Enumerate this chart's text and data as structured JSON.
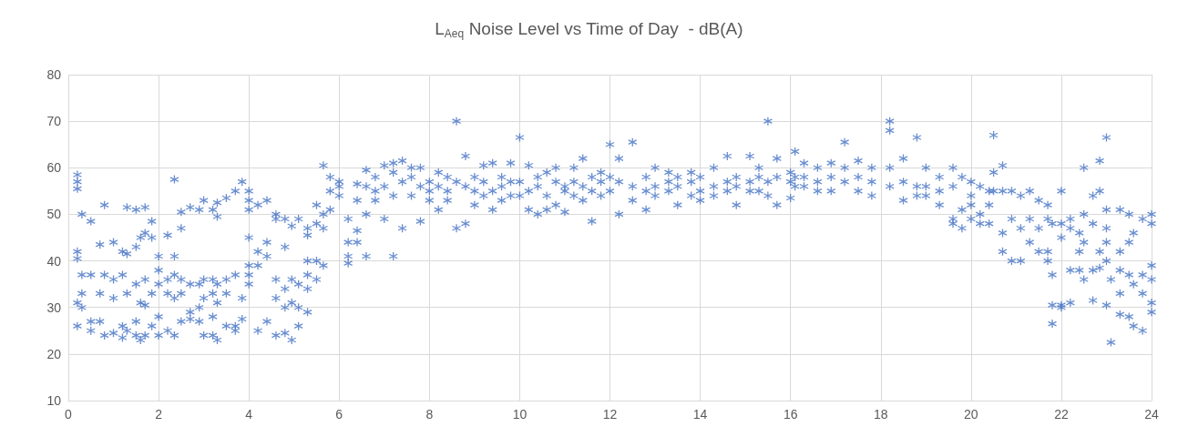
{
  "chart_data": {
    "type": "scatter",
    "title": "L$_{Aeq}$ Noise Level vs Time of Day  - dB(A)",
    "xlim": [
      0,
      24
    ],
    "xticks": [
      0,
      2,
      4,
      6,
      8,
      10,
      12,
      14,
      16,
      18,
      20,
      22,
      24
    ],
    "ylim": [
      10,
      80
    ],
    "yticks": [
      10,
      20,
      30,
      40,
      50,
      60,
      70,
      80
    ],
    "grid": true,
    "marker": "cross",
    "series": [
      {
        "color": "#4472c4",
        "x": [
          0.2,
          0.2,
          0.2,
          0.2,
          0.2,
          0.2,
          0.2,
          0.3,
          0.3,
          0.3,
          0.3,
          0.5,
          0.5,
          0.5,
          0.5,
          0.7,
          0.7,
          0.7,
          0.8,
          0.8,
          0.8,
          1.0,
          1.0,
          1.0,
          1.0,
          1.2,
          1.2,
          1.2,
          1.2,
          1.3,
          1.3,
          1.3,
          1.3,
          1.5,
          1.5,
          1.5,
          1.5,
          1.5,
          1.6,
          1.6,
          1.6,
          1.7,
          1.7,
          1.7,
          1.7,
          1.7,
          1.85,
          1.85,
          1.85,
          1.85,
          2.0,
          2.0,
          2.0,
          2.0,
          2.0,
          2.2,
          2.2,
          2.2,
          2.2,
          2.35,
          2.35,
          2.35,
          2.35,
          2.35,
          2.5,
          2.5,
          2.5,
          2.5,
          2.5,
          2.7,
          2.7,
          2.7,
          2.7,
          2.9,
          2.9,
          2.9,
          2.9,
          3.0,
          3.0,
          3.0,
          3.0,
          3.2,
          3.2,
          3.2,
          3.2,
          3.2,
          3.3,
          3.3,
          3.3,
          3.3,
          3.3,
          3.5,
          3.5,
          3.5,
          3.5,
          3.7,
          3.7,
          3.7,
          3.7,
          3.85,
          3.85,
          3.85,
          4.0,
          4.0,
          4.0,
          4.0,
          4.0,
          4.0,
          4.0,
          4.2,
          4.2,
          4.2,
          4.2,
          4.4,
          4.4,
          4.4,
          4.4,
          4.6,
          4.6,
          4.6,
          4.6,
          4.6,
          4.8,
          4.8,
          4.8,
          4.8,
          4.8,
          4.95,
          4.95,
          4.95,
          4.95,
          5.1,
          5.1,
          5.1,
          5.1,
          5.3,
          5.3,
          5.3,
          5.3,
          5.3,
          5.3,
          5.5,
          5.5,
          5.5,
          5.5,
          5.65,
          5.65,
          5.65,
          5.65,
          5.8,
          5.8,
          5.8,
          6.0,
          6.0,
          6.0,
          6.2,
          6.2,
          6.2,
          6.2,
          6.4,
          6.4,
          6.4,
          6.4,
          6.6,
          6.6,
          6.6,
          6.6,
          6.8,
          6.8,
          6.8,
          7.0,
          7.0,
          7.0,
          7.2,
          7.2,
          7.2,
          7.2,
          7.4,
          7.4,
          7.4,
          7.6,
          7.6,
          7.6,
          7.8,
          7.8,
          7.8,
          8.0,
          8.0,
          8.0,
          8.2,
          8.2,
          8.2,
          8.4,
          8.4,
          8.4,
          8.6,
          8.6,
          8.6,
          8.8,
          8.8,
          8.8,
          9.0,
          9.0,
          9.0,
          9.2,
          9.2,
          9.2,
          9.4,
          9.4,
          9.4,
          9.6,
          9.6,
          9.6,
          9.8,
          9.8,
          9.8,
          10.0,
          10.0,
          10.0,
          10.2,
          10.2,
          10.2,
          10.4,
          10.4,
          10.4,
          10.6,
          10.6,
          10.6,
          10.8,
          10.8,
          10.8,
          11.0,
          11.0,
          11.0,
          11.2,
          11.2,
          11.2,
          11.4,
          11.4,
          11.4,
          11.6,
          11.6,
          11.6,
          11.8,
          11.8,
          11.8,
          12.0,
          12.0,
          12.0,
          12.2,
          12.2,
          12.2,
          12.5,
          12.5,
          12.5,
          12.8,
          12.8,
          12.8,
          13.0,
          13.0,
          13.0,
          13.3,
          13.3,
          13.3,
          13.5,
          13.5,
          13.5,
          13.8,
          13.8,
          13.8,
          14.0,
          14.0,
          14.0,
          14.3,
          14.3,
          14.3,
          14.6,
          14.6,
          14.6,
          14.8,
          14.8,
          14.8,
          15.1,
          15.1,
          15.1,
          15.3,
          15.3,
          15.3,
          15.5,
          15.5,
          15.5,
          15.7,
          15.7,
          15.7,
          16.0,
          16.0,
          16.0,
          16.1,
          16.1,
          16.1,
          16.3,
          16.3,
          16.3,
          16.6,
          16.6,
          16.6,
          16.9,
          16.9,
          16.9,
          17.2,
          17.2,
          17.2,
          17.5,
          17.5,
          17.5,
          17.8,
          17.8,
          17.8,
          18.2,
          18.2,
          18.2,
          18.2,
          18.5,
          18.5,
          18.5,
          18.8,
          18.8,
          18.8,
          19.0,
          19.0,
          19.0,
          19.3,
          19.3,
          19.3,
          19.6,
          19.6,
          19.6,
          19.6,
          19.8,
          19.8,
          19.8,
          20.0,
          20.0,
          20.0,
          20.0,
          20.2,
          20.2,
          20.2,
          20.4,
          20.4,
          20.4,
          20.5,
          20.5,
          20.5,
          20.7,
          20.7,
          20.7,
          20.7,
          20.9,
          20.9,
          20.9,
          21.1,
          21.1,
          21.1,
          21.3,
          21.3,
          21.3,
          21.5,
          21.5,
          21.5,
          21.7,
          21.7,
          21.7,
          21.7,
          21.8,
          21.8,
          21.8,
          21.8,
          22.0,
          22.0,
          22.0,
          22.0,
          22.0,
          22.2,
          22.2,
          22.2,
          22.2,
          22.4,
          22.4,
          22.4,
          22.5,
          22.5,
          22.5,
          22.5,
          22.7,
          22.7,
          22.7,
          22.7,
          22.85,
          22.85,
          22.85,
          22.85,
          23.0,
          23.0,
          23.0,
          23.0,
          23.0,
          23.0,
          23.1,
          23.1,
          23.3,
          23.3,
          23.3,
          23.3,
          23.3,
          23.5,
          23.5,
          23.5,
          23.5,
          23.6,
          23.6,
          23.6,
          23.8,
          23.8,
          23.8,
          23.8,
          24.0,
          24.0,
          24.0,
          24.0,
          24.0,
          24.0
        ],
        "values": [
          58.5,
          57,
          55.5,
          42,
          40.5,
          31,
          26,
          50,
          37,
          33,
          30,
          48.5,
          37,
          27,
          25,
          43.5,
          33,
          27,
          52,
          37,
          24,
          44,
          36,
          32,
          24.5,
          42,
          37,
          26,
          23.5,
          51.5,
          41.5,
          33,
          25,
          51,
          43,
          35,
          27,
          24,
          45,
          31,
          23,
          51.5,
          46,
          36,
          30.5,
          24,
          48.5,
          45,
          33,
          26,
          41,
          38,
          35,
          28,
          24,
          45.5,
          36,
          33,
          25,
          57.5,
          41,
          37,
          32,
          24,
          50.5,
          47,
          36,
          33,
          27,
          51.5,
          35,
          29,
          27.5,
          51,
          35,
          30,
          27,
          53,
          36,
          32,
          24,
          51,
          36,
          33,
          28,
          24,
          52.5,
          49.5,
          35,
          31,
          23,
          53.5,
          36,
          33,
          26,
          55,
          37,
          26,
          25,
          57,
          32,
          27.5,
          55,
          53,
          51,
          45,
          39,
          37,
          35,
          52,
          42,
          39,
          25,
          53,
          44,
          41,
          27,
          50,
          49,
          36,
          32,
          24,
          49,
          43,
          34,
          30,
          24.5,
          47.5,
          36,
          31,
          23,
          49,
          35,
          30,
          26,
          47,
          45.5,
          40,
          37,
          34,
          29,
          52,
          48,
          40,
          36,
          60.5,
          50,
          47,
          39,
          58,
          55,
          51,
          57,
          56,
          54,
          49,
          44,
          41,
          39.5,
          56.5,
          53,
          46.5,
          44,
          59.5,
          56,
          50,
          41,
          58,
          55,
          53,
          60.5,
          56,
          49,
          61,
          59,
          54,
          41,
          61.5,
          57,
          47,
          60,
          58,
          54,
          60,
          56,
          48.5,
          57,
          55,
          53,
          59,
          56,
          51,
          58,
          55,
          53,
          70,
          57,
          47,
          62.5,
          56,
          48,
          58,
          55,
          52,
          60.5,
          57,
          54,
          61,
          55,
          51,
          58,
          56,
          53,
          61,
          57,
          54,
          66.5,
          57,
          54,
          60.5,
          55,
          51,
          58,
          56,
          50,
          59,
          54,
          51,
          60,
          57,
          52,
          56,
          55,
          50.5,
          60,
          57,
          54,
          62,
          56,
          53,
          58,
          55,
          48.5,
          59,
          57,
          54,
          65,
          58,
          55,
          62,
          57,
          50,
          65.5,
          56,
          53,
          58,
          55,
          51,
          60,
          56,
          54,
          59,
          57,
          55,
          58,
          56,
          52,
          59,
          57,
          54,
          58,
          55,
          53,
          60,
          56,
          54,
          62.5,
          57,
          55,
          58,
          56,
          52,
          62.5,
          57,
          55,
          60,
          58,
          55,
          70,
          57,
          54,
          62,
          58,
          52,
          59,
          57,
          53.5,
          63.5,
          58,
          56,
          61,
          58,
          56,
          60,
          57,
          55,
          61,
          58,
          55,
          65.5,
          60,
          57,
          61.5,
          58,
          55,
          60,
          57,
          54,
          70,
          68,
          60,
          56,
          62,
          57,
          53,
          66.5,
          56,
          54,
          60,
          56,
          54,
          58,
          55,
          52,
          60,
          56,
          49,
          48,
          58,
          51,
          47,
          57,
          54,
          52,
          49,
          56,
          50,
          48,
          55,
          52,
          48,
          67,
          59,
          55,
          60.5,
          55,
          46,
          42,
          55,
          49,
          40,
          54,
          47,
          40,
          55,
          49,
          44,
          53,
          47,
          42,
          52,
          49,
          42,
          40,
          48,
          37,
          30.5,
          26.5,
          55,
          48,
          45,
          30.5,
          30,
          49,
          47,
          38,
          31,
          46,
          42,
          38,
          60,
          50,
          44,
          36,
          54,
          48,
          38,
          31.5,
          61.5,
          55,
          42,
          38.5,
          66.5,
          51,
          47,
          44,
          40,
          30.5,
          22.5,
          36,
          51,
          42,
          38,
          33,
          28.5,
          50,
          44,
          37,
          28,
          46,
          35,
          26,
          49,
          37,
          33,
          25,
          50,
          48,
          39,
          36,
          31,
          29
        ]
      }
    ]
  }
}
